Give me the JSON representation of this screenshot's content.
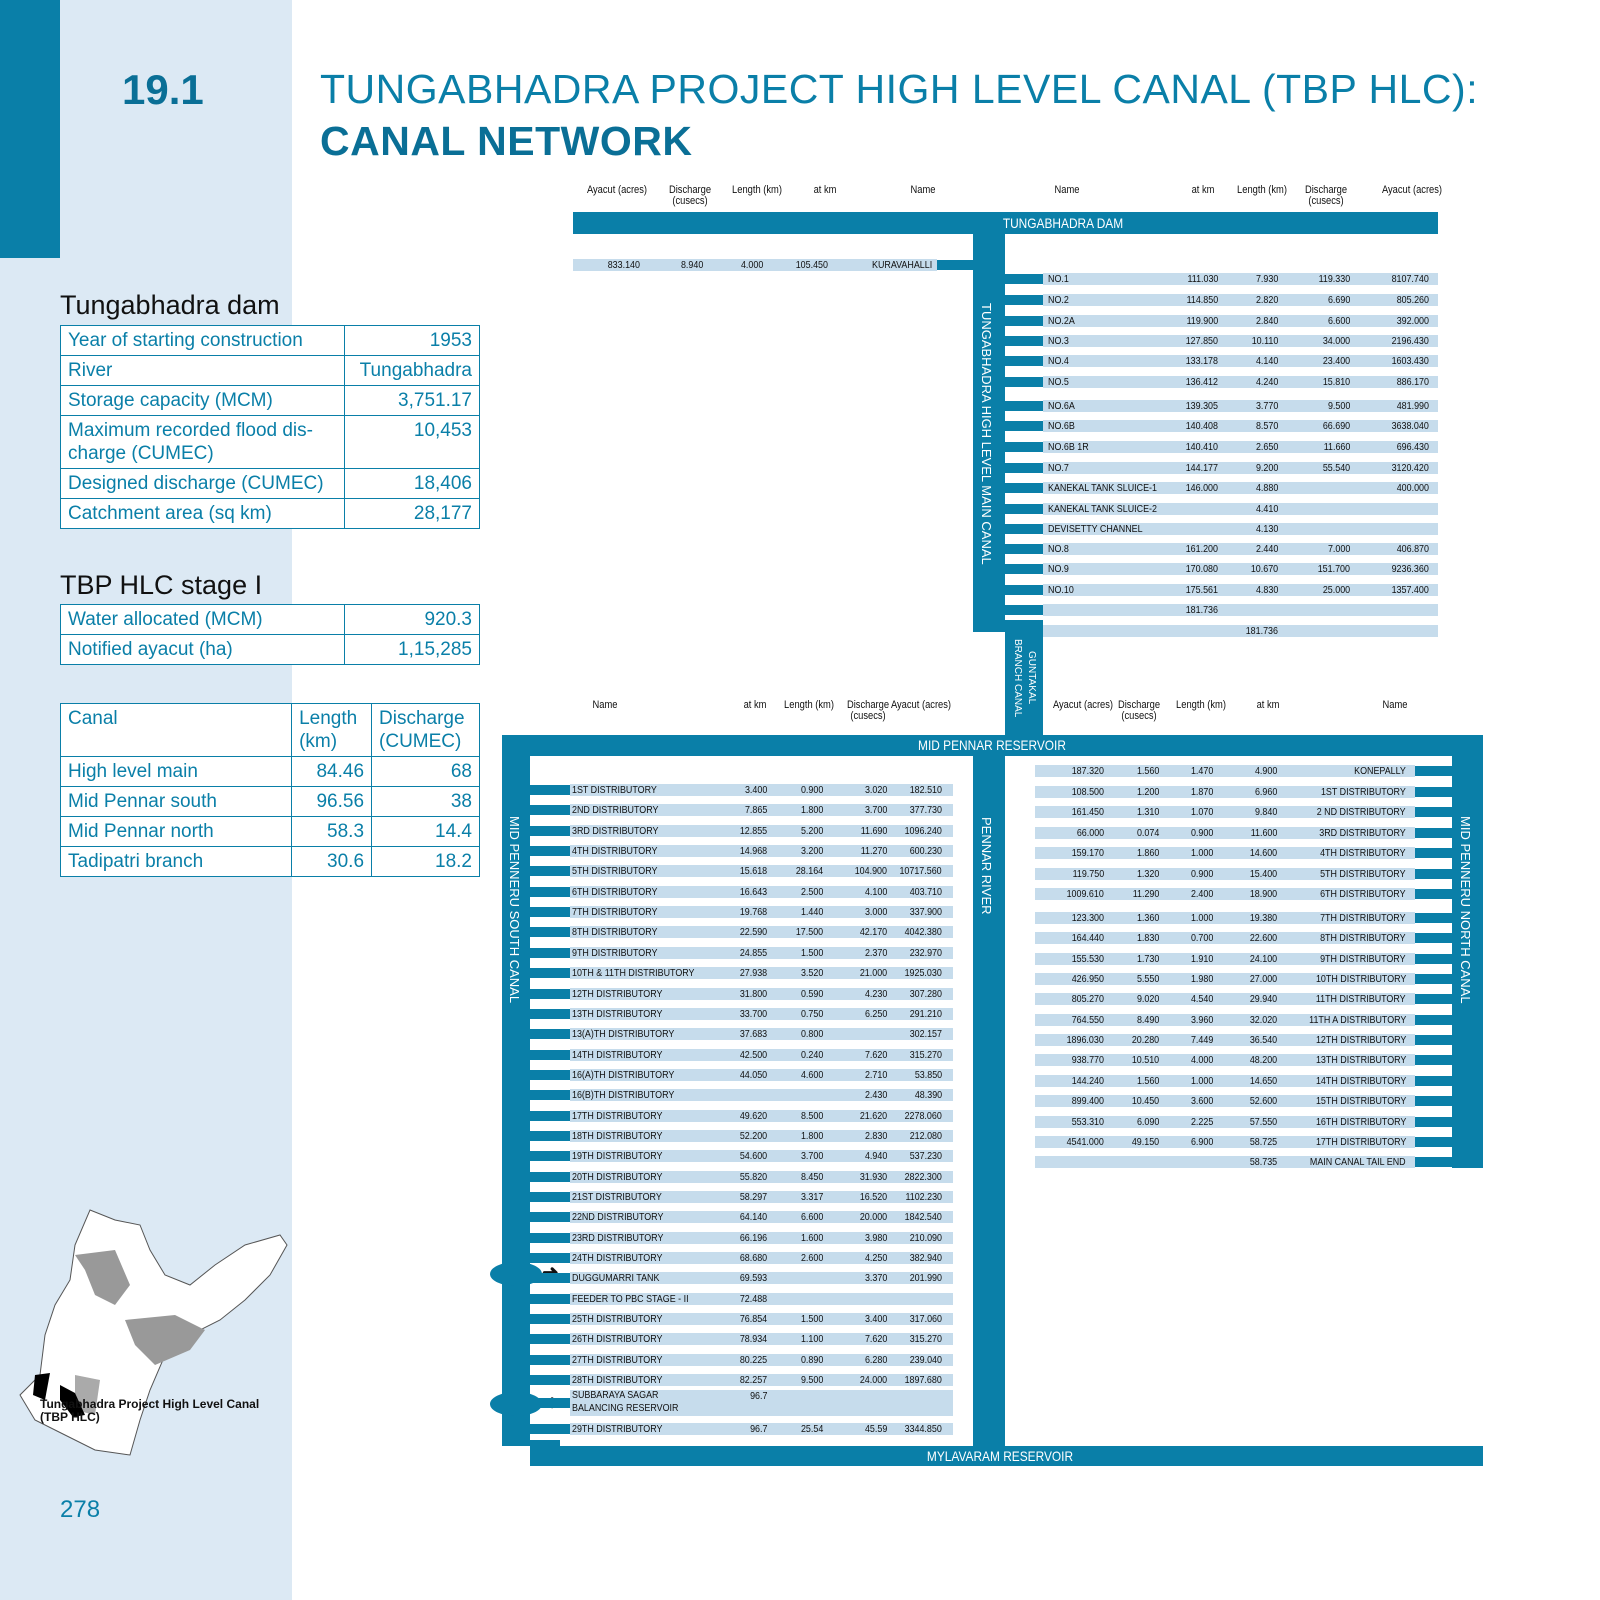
{
  "section_number": "19.1",
  "title_line1": "TUNGABHADRA PROJECT HIGH LEVEL CANAL (TBP HLC):",
  "title_line2": "CANAL NETWORK",
  "dam_table": {
    "heading": "Tungabhadra dam",
    "rows": [
      [
        "Year of starting construction",
        "1953"
      ],
      [
        "River",
        "Tungabhadra"
      ],
      [
        "Storage capacity (MCM)",
        "3,751.17"
      ],
      [
        "Maximum recorded flood dis-charge (CUMEC)",
        "10,453"
      ],
      [
        "Designed discharge (CUMEC)",
        "18,406"
      ],
      [
        "Catchment area (sq km)",
        "28,177"
      ]
    ]
  },
  "stage_table": {
    "heading": "TBP HLC stage I",
    "rows": [
      [
        "Water allocated (MCM)",
        "920.3"
      ],
      [
        "Notified ayacut (ha)",
        "1,15,285"
      ]
    ]
  },
  "canal_table": {
    "headers": [
      "Canal",
      "Length (km)",
      "Discharge (CUMEC)"
    ],
    "rows": [
      [
        "High level main",
        "84.46",
        "68"
      ],
      [
        "Mid Pennar south",
        "96.56",
        "38"
      ],
      [
        "Mid Pennar north",
        "58.3",
        "14.4"
      ],
      [
        "Tadipatri branch",
        "30.6",
        "18.2"
      ]
    ]
  },
  "map_label": "Tungabhadra Project High Level Canal (TBP HLC)",
  "page_number": "278",
  "colors": {
    "accent": "#0a7fa8",
    "stripe": "#c6dcec",
    "panel": "#dce9f4"
  },
  "network": {
    "labels": {
      "tungabhadra_dam": "TUNGABHADRA DAM",
      "main_canal": "TUNGABHADRA HIGH LEVEL MAIN CANAL",
      "guntakal": "GUNTAKAL BRANCH CANAL",
      "mid_pennar": "MID PENNAR RESERVOIR",
      "south_canal": "MID PENNERU SOUTH CANAL",
      "pennar_river": "PENNAR RIVER",
      "north_canal": "MID PENNERU NORTH CANAL",
      "mylavaram": "MYLAVARAM RESERVOIR"
    },
    "top_left_headers": [
      "Ayacut (acres)",
      "Discharge (cusecs)",
      "Length (km)",
      "at km",
      "Name"
    ],
    "top_left_rows": [
      [
        "833.140",
        "8.940",
        "4.000",
        "105.450",
        "KURAVAHALLI"
      ]
    ],
    "top_right_headers": [
      "Name",
      "at km",
      "Length (km)",
      "Discharge (cusecs)",
      "Ayacut (acres)"
    ],
    "top_right_rows": [
      [
        "NO.1",
        "111.030",
        "7.930",
        "119.330",
        "8107.740"
      ],
      [
        "NO.2",
        "114.850",
        "2.820",
        "6.690",
        "805.260"
      ],
      [
        "NO.2A",
        "119.900",
        "2.840",
        "6.600",
        "392.000"
      ],
      [
        "NO.3",
        "127.850",
        "10.110",
        "34.000",
        "2196.430"
      ],
      [
        "NO.4",
        "133.178",
        "4.140",
        "23.400",
        "1603.430"
      ],
      [
        "NO.5",
        "136.412",
        "4.240",
        "15.810",
        "886.170"
      ],
      [
        "NO.6A",
        "139.305",
        "3.770",
        "9.500",
        "481.990"
      ],
      [
        "NO.6B",
        "140.408",
        "8.570",
        "66.690",
        "3638.040"
      ],
      [
        "NO.6B 1R",
        "140.410",
        "2.650",
        "11.660",
        "696.430"
      ],
      [
        "NO.7",
        "144.177",
        "9.200",
        "55.540",
        "3120.420"
      ],
      [
        "KANEKAL TANK SLUICE-1",
        "146.000",
        "4.880",
        "",
        "400.000"
      ],
      [
        "KANEKAL TANK SLUICE-2",
        "",
        "4.410",
        "",
        ""
      ],
      [
        "DEVISETTY CHANNEL",
        "",
        "4.130",
        "",
        ""
      ],
      [
        "NO.8",
        "161.200",
        "2.440",
        "7.000",
        "406.870"
      ],
      [
        "NO.9",
        "170.080",
        "10.670",
        "151.700",
        "9236.360"
      ],
      [
        "NO.10",
        "175.561",
        "4.830",
        "25.000",
        "1357.400"
      ],
      [
        "",
        "181.736",
        "",
        "",
        ""
      ],
      [
        "",
        "",
        "181.736",
        "",
        ""
      ]
    ],
    "south_headers": [
      "Name",
      "at km",
      "Length (km)",
      "Discharge (cusecs)",
      "Ayacut (acres)"
    ],
    "south_rows": [
      [
        "1ST DISTRIBUTORY",
        "3.400",
        "0.900",
        "3.020",
        "182.510"
      ],
      [
        "2ND DISTRIBUTORY",
        "7.865",
        "1.800",
        "3.700",
        "377.730"
      ],
      [
        "3RD DISTRIBUTORY",
        "12.855",
        "5.200",
        "11.690",
        "1096.240"
      ],
      [
        "4TH DISTRIBUTORY",
        "14.968",
        "3.200",
        "11.270",
        "600.230"
      ],
      [
        "5TH DISTRIBUTORY",
        "15.618",
        "28.164",
        "104.900",
        "10717.560"
      ],
      [
        "6TH DISTRIBUTORY",
        "16.643",
        "2.500",
        "4.100",
        "403.710"
      ],
      [
        "7TH DISTRIBUTORY",
        "19.768",
        "1.440",
        "3.000",
        "337.900"
      ],
      [
        "8TH DISTRIBUTORY",
        "22.590",
        "17.500",
        "42.170",
        "4042.380"
      ],
      [
        "9TH DISTRIBUTORY",
        "24.855",
        "1.500",
        "2.370",
        "232.970"
      ],
      [
        "10TH & 11TH DISTRIBUTORY",
        "27.938",
        "3.520",
        "21.000",
        "1925.030"
      ],
      [
        "12TH DISTRIBUTORY",
        "31.800",
        "0.590",
        "4.230",
        "307.280"
      ],
      [
        "13TH DISTRIBUTORY",
        "33.700",
        "0.750",
        "6.250",
        "291.210"
      ],
      [
        "13(A)TH DISTRIBUTORY",
        "37.683",
        "0.800",
        "",
        "302.157"
      ],
      [
        "14TH DISTRIBUTORY",
        "42.500",
        "0.240",
        "7.620",
        "315.270"
      ],
      [
        "16(A)TH DISTRIBUTORY",
        "44.050",
        "4.600",
        "2.710",
        "53.850"
      ],
      [
        "16(B)TH DISTRIBUTORY",
        "",
        "",
        "2.430",
        "48.390"
      ],
      [
        "17TH DISTRIBUTORY",
        "49.620",
        "8.500",
        "21.620",
        "2278.060"
      ],
      [
        "18TH DISTRIBUTORY",
        "52.200",
        "1.800",
        "2.830",
        "212.080"
      ],
      [
        "19TH DISTRIBUTORY",
        "54.600",
        "3.700",
        "4.940",
        "537.230"
      ],
      [
        "20TH DISTRIBUTORY",
        "55.820",
        "8.450",
        "31.930",
        "2822.300"
      ],
      [
        "21ST DISTRIBUTORY",
        "58.297",
        "3.317",
        "16.520",
        "1102.230"
      ],
      [
        "22ND DISTRIBUTORY",
        "64.140",
        "6.600",
        "20.000",
        "1842.540"
      ],
      [
        "23RD DISTRIBUTORY",
        "66.196",
        "1.600",
        "3.980",
        "210.090"
      ],
      [
        "24TH DISTRIBUTORY",
        "68.680",
        "2.600",
        "4.250",
        "382.940"
      ],
      [
        "DUGGUMARRI TANK",
        "69.593",
        "",
        "3.370",
        "201.990"
      ],
      [
        "FEEDER TO PBC STAGE - II",
        "72.488",
        "",
        "",
        ""
      ],
      [
        "25TH DISTRIBUTORY",
        "76.854",
        "1.500",
        "3.400",
        "317.060"
      ],
      [
        "26TH DISTRIBUTORY",
        "78.934",
        "1.100",
        "7.620",
        "315.270"
      ],
      [
        "27TH DISTRIBUTORY",
        "80.225",
        "0.890",
        "6.280",
        "239.040"
      ],
      [
        "28TH DISTRIBUTORY",
        "82.257",
        "9.500",
        "24.000",
        "1897.680"
      ],
      [
        "SUBBARAYA SAGAR BALANCING RESERVOIR",
        "96.7",
        "",
        "",
        ""
      ],
      [
        "29TH DISTRIBUTORY",
        "96.7",
        "25.54",
        "45.59",
        "3344.850"
      ]
    ],
    "north_headers": [
      "Ayacut (acres)",
      "Discharge (cusecs)",
      "Length (km)",
      "at km",
      "Name"
    ],
    "north_rows": [
      [
        "187.320",
        "1.560",
        "1.470",
        "4.900",
        "KONEPALLY"
      ],
      [
        "108.500",
        "1.200",
        "1.870",
        "6.960",
        "1ST DISTRIBUTORY"
      ],
      [
        "161.450",
        "1.310",
        "1.070",
        "9.840",
        "2 ND DISTRIBUTORY"
      ],
      [
        "66.000",
        "0.074",
        "0.900",
        "11.600",
        "3RD DISTRIBUTORY"
      ],
      [
        "159.170",
        "1.860",
        "1.000",
        "14.600",
        "4TH DISTRIBUTORY"
      ],
      [
        "119.750",
        "1.320",
        "0.900",
        "15.400",
        "5TH DISTRIBUTORY"
      ],
      [
        "1009.610",
        "11.290",
        "2.400",
        "18.900",
        "6TH DISTRIBUTORY"
      ],
      [
        "123.300",
        "1.360",
        "1.000",
        "19.380",
        "7TH DISTRIBUTORY"
      ],
      [
        "164.440",
        "1.830",
        "0.700",
        "22.600",
        "8TH DISTRIBUTORY"
      ],
      [
        "155.530",
        "1.730",
        "1.910",
        "24.100",
        "9TH DISTRIBUTORY"
      ],
      [
        "426.950",
        "5.550",
        "1.980",
        "27.000",
        "10TH DISTRIBUTORY"
      ],
      [
        "805.270",
        "9.020",
        "4.540",
        "29.940",
        "11TH DISTRIBUTORY"
      ],
      [
        "764.550",
        "8.490",
        "3.960",
        "32.020",
        "11TH A DISTRIBUTORY"
      ],
      [
        "1896.030",
        "20.280",
        "7.449",
        "36.540",
        "12TH DISTRIBUTORY"
      ],
      [
        "938.770",
        "10.510",
        "4.000",
        "48.200",
        "13TH DISTRIBUTORY"
      ],
      [
        "144.240",
        "1.560",
        "1.000",
        "14.650",
        "14TH DISTRIBUTORY"
      ],
      [
        "899.400",
        "10.450",
        "3.600",
        "52.600",
        "15TH DISTRIBUTORY"
      ],
      [
        "553.310",
        "6.090",
        "2.225",
        "57.550",
        "16TH DISTRIBUTORY"
      ],
      [
        "4541.000",
        "49.150",
        "6.900",
        "58.725",
        "17TH DISTRIBUTORY"
      ],
      [
        "",
        "",
        "",
        "58.735",
        "MAIN CANAL TAIL END"
      ]
    ]
  }
}
